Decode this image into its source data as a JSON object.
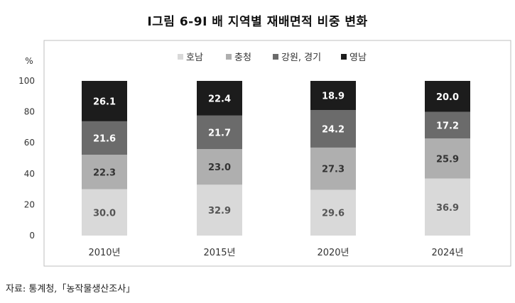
{
  "title": "Ⅰ그림 6-9Ⅰ 배 지역별 재배면적 비중 변화",
  "source": "자료: 통계청,「농작물생산조사」",
  "chart_data": {
    "type": "bar",
    "stacked": true,
    "ylabel": "%",
    "ylim": [
      0,
      100
    ],
    "yticks": [
      0,
      20,
      40,
      60,
      80,
      100
    ],
    "categories": [
      "2010년",
      "2015년",
      "2020년",
      "2024년"
    ],
    "legend_position": "top",
    "series": [
      {
        "name": "호남",
        "color": "#d9d9d9",
        "label_color": "#555555",
        "values": [
          30.0,
          32.9,
          29.6,
          36.9
        ]
      },
      {
        "name": "충청",
        "color": "#afafaf",
        "label_color": "#333333",
        "values": [
          22.3,
          23.0,
          27.3,
          25.9
        ]
      },
      {
        "name": "강원, 경기",
        "color": "#6b6b6b",
        "label_color": "#ffffff",
        "values": [
          21.6,
          21.7,
          24.2,
          17.2
        ]
      },
      {
        "name": "영남",
        "color": "#1c1c1c",
        "label_color": "#ffffff",
        "values": [
          26.1,
          22.4,
          18.9,
          20.0
        ]
      }
    ]
  }
}
